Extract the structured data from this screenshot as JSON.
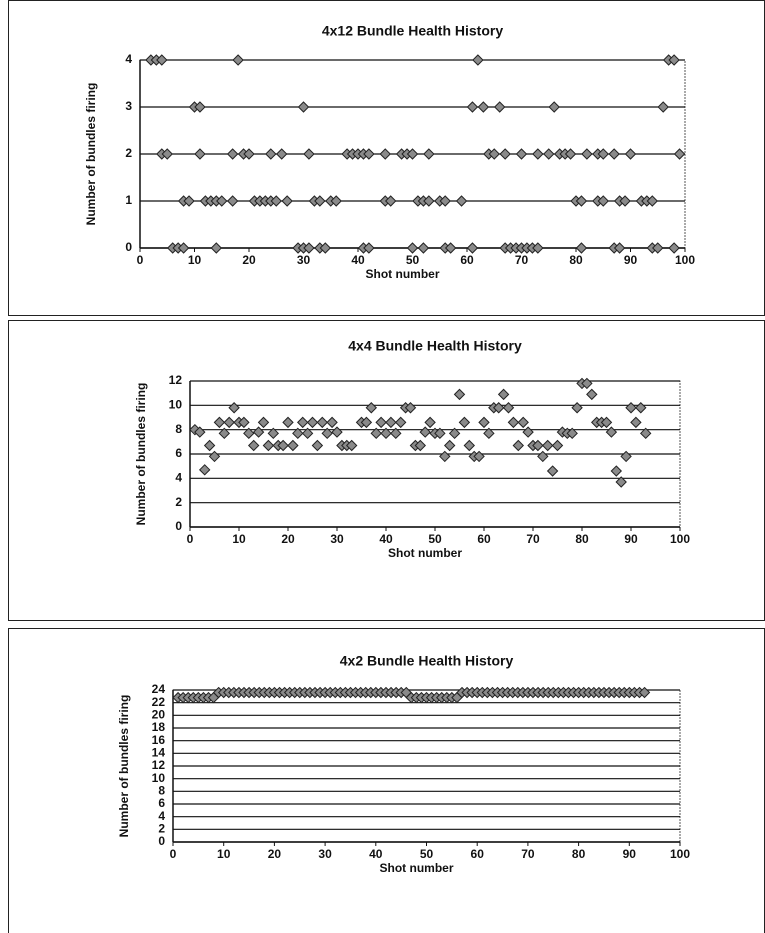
{
  "chart_data": [
    {
      "type": "scatter",
      "title": "4x12 Bundle Health History",
      "x_label": "Shot number",
      "y_label": "Number of bundles firing",
      "x": [
        2,
        3,
        4,
        18,
        62,
        97,
        98,
        10,
        11,
        30,
        61,
        63,
        66,
        76,
        96,
        4,
        5,
        11,
        17,
        19,
        20,
        24,
        26,
        31,
        38,
        39,
        40,
        41,
        42,
        45,
        48,
        49,
        50,
        53,
        64,
        65,
        67,
        70,
        73,
        75,
        77,
        78,
        79,
        82,
        84,
        85,
        87,
        90,
        99,
        8,
        9,
        12,
        13,
        14,
        15,
        17,
        21,
        22,
        23,
        24,
        25,
        27,
        32,
        33,
        35,
        36,
        45,
        46,
        51,
        52,
        53,
        55,
        56,
        59,
        80,
        81,
        84,
        85,
        88,
        89,
        92,
        93,
        94,
        6,
        7,
        8,
        14,
        29,
        30,
        31,
        33,
        34,
        41,
        42,
        50,
        52,
        56,
        57,
        61,
        67,
        68,
        69,
        70,
        71,
        72,
        73,
        81,
        87,
        88,
        94,
        95,
        98
      ],
      "values": [
        4,
        4,
        4,
        4,
        4,
        4,
        4,
        3,
        3,
        3,
        3,
        3,
        3,
        3,
        3,
        2,
        2,
        2,
        2,
        2,
        2,
        2,
        2,
        2,
        2,
        2,
        2,
        2,
        2,
        2,
        2,
        2,
        2,
        2,
        2,
        2,
        2,
        2,
        2,
        2,
        2,
        2,
        2,
        2,
        2,
        2,
        2,
        2,
        2,
        1,
        1,
        1,
        1,
        1,
        1,
        1,
        1,
        1,
        1,
        1,
        1,
        1,
        1,
        1,
        1,
        1,
        1,
        1,
        1,
        1,
        1,
        1,
        1,
        1,
        1,
        1,
        1,
        1,
        1,
        1,
        1,
        1,
        1,
        0,
        0,
        0,
        0,
        0,
        0,
        0,
        0,
        0,
        0,
        0,
        0,
        0,
        0,
        0,
        0,
        0,
        0,
        0,
        0,
        0,
        0,
        0,
        0,
        0,
        0,
        0,
        0,
        0
      ],
      "color": "#8a8a8a",
      "xlim": [
        0,
        100
      ],
      "xticks": [
        0,
        10,
        20,
        30,
        40,
        50,
        60,
        70,
        80,
        90,
        100
      ],
      "ylim": [
        0,
        4
      ],
      "yticks": [
        0,
        1,
        2,
        3,
        4
      ],
      "grid": true
    },
    {
      "type": "scatter",
      "title": "4x4 Bundle Health History",
      "x_label": "Shot number",
      "y_label": "Number of bundles firing",
      "x": [
        1,
        2,
        3,
        4,
        5,
        6,
        7,
        8,
        9,
        10,
        11,
        12,
        13,
        14,
        15,
        16,
        17,
        18,
        19,
        20,
        21,
        22,
        23,
        24,
        25,
        26,
        27,
        28,
        29,
        30,
        31,
        32,
        33,
        35,
        36,
        37,
        38,
        39,
        40,
        41,
        42,
        43,
        44,
        45,
        46,
        47,
        48,
        49,
        50,
        51,
        52,
        53,
        54,
        55,
        56,
        57,
        58,
        59,
        60,
        61,
        62,
        63,
        64,
        65,
        66,
        67,
        68,
        69,
        70,
        71,
        72,
        73,
        74,
        75,
        76,
        77,
        78,
        79,
        80,
        81,
        82,
        83,
        84,
        85,
        86,
        87,
        88,
        89,
        90,
        91,
        92,
        93
      ],
      "values": [
        8,
        7.8,
        4.7,
        6.7,
        5.8,
        8.6,
        7.7,
        8.6,
        9.8,
        8.6,
        8.6,
        7.7,
        6.7,
        7.8,
        8.6,
        6.7,
        7.7,
        6.7,
        6.7,
        8.6,
        6.7,
        7.7,
        8.6,
        7.7,
        8.6,
        6.7,
        8.6,
        7.7,
        8.6,
        7.8,
        6.7,
        6.7,
        6.7,
        8.6,
        8.6,
        9.8,
        7.7,
        8.6,
        7.7,
        8.6,
        7.7,
        8.6,
        9.8,
        9.8,
        6.7,
        6.7,
        7.8,
        8.6,
        7.7,
        7.7,
        5.8,
        6.7,
        7.7,
        10.9,
        8.6,
        6.7,
        5.8,
        5.8,
        8.6,
        7.7,
        9.8,
        9.8,
        10.9,
        9.8,
        8.6,
        6.7,
        8.6,
        7.8,
        6.7,
        6.7,
        5.8,
        6.7,
        4.6,
        6.7,
        7.8,
        7.7,
        7.7,
        9.8,
        11.8,
        11.8,
        10.9,
        8.6,
        8.6,
        8.6,
        7.8,
        4.6,
        3.7,
        5.8,
        9.8,
        8.6,
        9.8,
        7.7
      ],
      "color": "#8a8a8a",
      "xlim": [
        0,
        100
      ],
      "xticks": [
        0,
        10,
        20,
        30,
        40,
        50,
        60,
        70,
        80,
        90,
        100
      ],
      "ylim": [
        0,
        12
      ],
      "yticks": [
        0,
        2,
        4,
        6,
        8,
        10,
        12
      ],
      "grid": true
    },
    {
      "type": "scatter",
      "title": "4x2 Bundle Health History",
      "x_label": "Shot number",
      "y_label": "Number of bundles firing",
      "x": [
        1,
        2,
        3,
        4,
        5,
        6,
        7,
        8,
        9,
        10,
        11,
        12,
        13,
        14,
        15,
        16,
        17,
        18,
        19,
        20,
        21,
        22,
        23,
        24,
        25,
        26,
        27,
        28,
        29,
        30,
        31,
        32,
        33,
        34,
        35,
        36,
        37,
        38,
        39,
        40,
        41,
        42,
        43,
        44,
        45,
        46,
        47,
        48,
        49,
        50,
        51,
        52,
        53,
        54,
        55,
        56,
        57,
        58,
        59,
        60,
        61,
        62,
        63,
        64,
        65,
        66,
        67,
        68,
        69,
        70,
        71,
        72,
        73,
        74,
        75,
        76,
        77,
        78,
        79,
        80,
        81,
        82,
        83,
        84,
        85,
        86,
        87,
        88,
        89,
        90,
        91,
        92,
        93
      ],
      "values": [
        22.8,
        22.8,
        22.8,
        22.8,
        22.8,
        22.8,
        22.8,
        22.8,
        23.6,
        23.6,
        23.6,
        23.6,
        23.6,
        23.6,
        23.6,
        23.6,
        23.6,
        23.6,
        23.6,
        23.6,
        23.6,
        23.6,
        23.6,
        23.6,
        23.6,
        23.6,
        23.6,
        23.6,
        23.6,
        23.6,
        23.6,
        23.6,
        23.6,
        23.6,
        23.6,
        23.6,
        23.6,
        23.6,
        23.6,
        23.6,
        23.6,
        23.6,
        23.6,
        23.6,
        23.6,
        23.6,
        22.8,
        22.8,
        22.8,
        22.8,
        22.8,
        22.8,
        22.8,
        22.8,
        22.8,
        22.8,
        23.6,
        23.6,
        23.6,
        23.6,
        23.6,
        23.6,
        23.6,
        23.6,
        23.6,
        23.6,
        23.6,
        23.6,
        23.6,
        23.6,
        23.6,
        23.6,
        23.6,
        23.6,
        23.6,
        23.6,
        23.6,
        23.6,
        23.6,
        23.6,
        23.6,
        23.6,
        23.6,
        23.6,
        23.6,
        23.6,
        23.6,
        23.6,
        23.6,
        23.6,
        23.6,
        23.6,
        23.6
      ],
      "color": "#8a8a8a",
      "xlim": [
        0,
        100
      ],
      "xticks": [
        0,
        10,
        20,
        30,
        40,
        50,
        60,
        70,
        80,
        90,
        100
      ],
      "ylim": [
        0,
        24
      ],
      "yticks": [
        0,
        2,
        4,
        6,
        8,
        10,
        12,
        14,
        16,
        18,
        20,
        22,
        24
      ],
      "grid": true
    }
  ]
}
